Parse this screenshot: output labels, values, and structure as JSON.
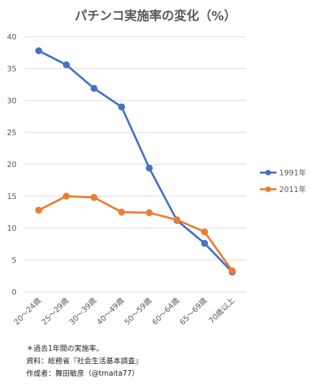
{
  "chart_data": {
    "type": "line",
    "title": "パチンコ実施率の変化（%）",
    "categories": [
      "20〜24歳",
      "25〜29歳",
      "30〜39歳",
      "40〜49歳",
      "50〜59歳",
      "60〜64歳",
      "65〜69歳",
      "70歳以上"
    ],
    "yticks": [
      "0",
      "5",
      "10",
      "15",
      "20",
      "25",
      "30",
      "35",
      "40"
    ],
    "ylim": [
      0,
      40
    ],
    "grid": true,
    "legend_position": "right",
    "series": [
      {
        "name": "1991年",
        "color": "#4472C4",
        "values": [
          37.8,
          35.6,
          31.9,
          29.0,
          19.4,
          11.2,
          7.6,
          3.1
        ]
      },
      {
        "name": "2011年",
        "color": "#ED7D31",
        "values": [
          12.8,
          15.0,
          14.8,
          12.5,
          12.4,
          11.3,
          9.4,
          3.3
        ]
      }
    ]
  },
  "notes": {
    "line1": "＊過去1年間の実施率。",
    "line2": "資料：総務省『社会生活基本調査』",
    "line3": "作成者：舞田敏彦（@tmaita77）"
  }
}
